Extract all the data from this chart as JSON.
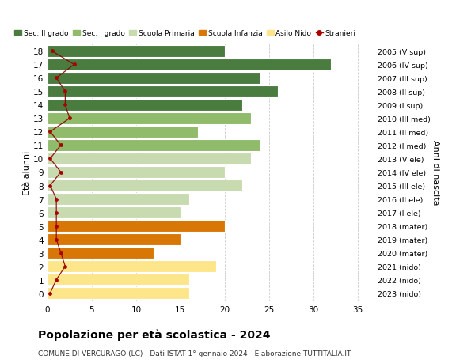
{
  "ages": [
    0,
    1,
    2,
    3,
    4,
    5,
    6,
    7,
    8,
    9,
    10,
    11,
    12,
    13,
    14,
    15,
    16,
    17,
    18
  ],
  "bar_values": [
    16,
    16,
    19,
    12,
    15,
    20,
    15,
    16,
    22,
    20,
    23,
    24,
    17,
    23,
    22,
    26,
    24,
    32,
    20
  ],
  "stranieri": [
    0.3,
    1.0,
    2.0,
    1.5,
    1.0,
    1.0,
    1.0,
    1.0,
    0.3,
    1.5,
    0.3,
    1.5,
    0.3,
    2.5,
    2.0,
    2.0,
    1.0,
    3.0,
    0.5
  ],
  "bar_colors": [
    "#fde68a",
    "#fde68a",
    "#fde68a",
    "#d97706",
    "#d97706",
    "#d97706",
    "#c8dbb0",
    "#c8dbb0",
    "#c8dbb0",
    "#c8dbb0",
    "#c8dbb0",
    "#8fbb6b",
    "#8fbb6b",
    "#8fbb6b",
    "#4a7c40",
    "#4a7c40",
    "#4a7c40",
    "#4a7c40",
    "#4a7c40"
  ],
  "right_labels": [
    "2023 (nido)",
    "2022 (nido)",
    "2021 (nido)",
    "2020 (mater)",
    "2019 (mater)",
    "2018 (mater)",
    "2017 (I ele)",
    "2016 (II ele)",
    "2015 (III ele)",
    "2014 (IV ele)",
    "2013 (V ele)",
    "2012 (I med)",
    "2011 (II med)",
    "2010 (III med)",
    "2009 (I sup)",
    "2008 (II sup)",
    "2007 (III sup)",
    "2006 (IV sup)",
    "2005 (V sup)"
  ],
  "legend_labels": [
    "Sec. II grado",
    "Sec. I grado",
    "Scuola Primaria",
    "Scuola Infanzia",
    "Asilo Nido",
    "Stranieri"
  ],
  "legend_colors": [
    "#4a7c40",
    "#8fbb6b",
    "#c8dbb0",
    "#d97706",
    "#fde68a",
    "#aa0000"
  ],
  "title": "Popolazione per età scolastica - 2024",
  "subtitle": "COMUNE DI VERCURAGO (LC) - Dati ISTAT 1° gennaio 2024 - Elaborazione TUTTITALIA.IT",
  "xlabel_right": "Anni di nascita",
  "ylabel_left": "Età alunni",
  "xlim": [
    0,
    37
  ],
  "bg_color": "#ffffff",
  "grid_color": "#cccccc",
  "bar_height": 0.85
}
